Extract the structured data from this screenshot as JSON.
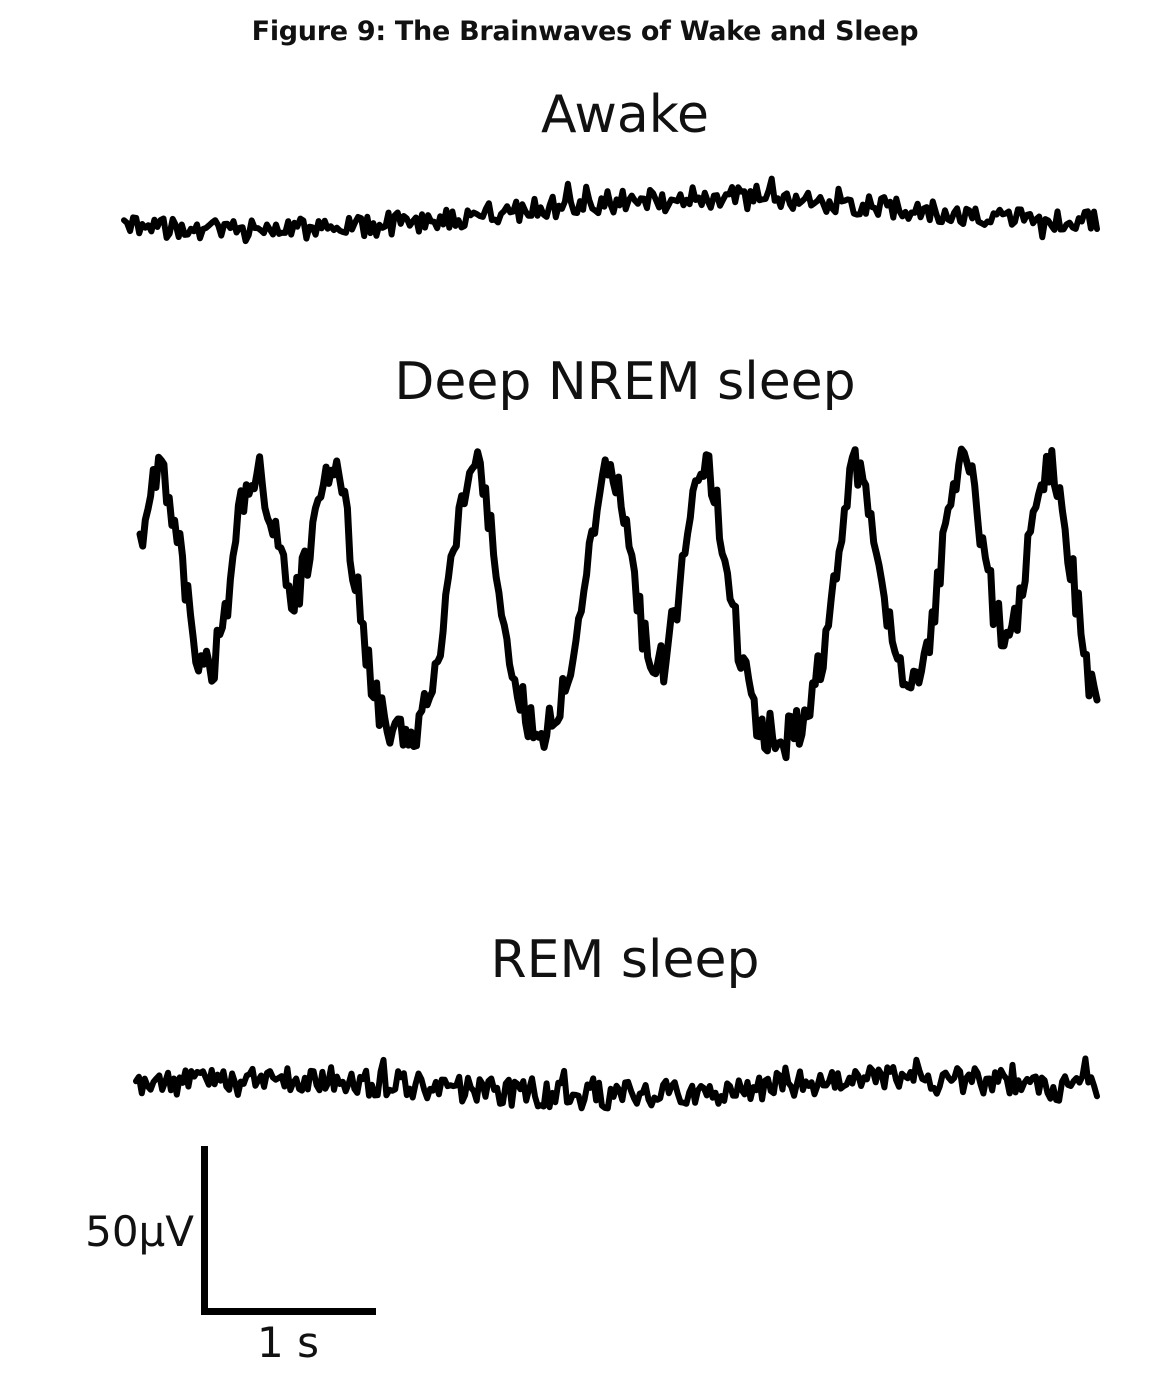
{
  "figure": {
    "title": "Figure 9: The Brainwaves of Wake and Sleep"
  },
  "traces": [
    {
      "key": "awake",
      "label": "Awake"
    },
    {
      "key": "nrem",
      "label": "Deep NREM sleep"
    },
    {
      "key": "rem",
      "label": "REM sleep"
    }
  ],
  "scale_bar": {
    "amplitude_label": "50μV",
    "time_label": "1 s"
  },
  "colors": {
    "trace": "#000000",
    "background": "#ffffff"
  }
}
